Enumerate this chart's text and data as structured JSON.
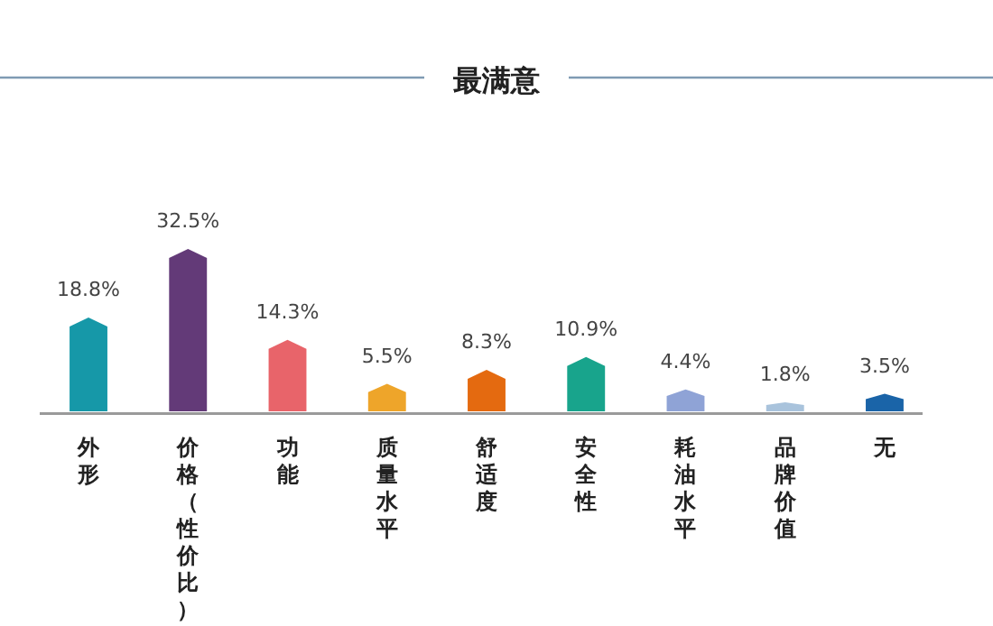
{
  "chart_data": {
    "type": "bar",
    "title": "最满意",
    "categories": [
      "外形",
      "价格（性价比）",
      "功能",
      "质量水平",
      "舒适度",
      "安全性",
      "耗油水平",
      "品牌价值",
      "无"
    ],
    "values": [
      18.8,
      32.5,
      14.3,
      5.5,
      8.3,
      10.9,
      4.4,
      1.8,
      3.5
    ],
    "value_labels": [
      "18.8%",
      "32.5%",
      "14.3%",
      "5.5%",
      "8.3%",
      "10.9%",
      "4.4%",
      "1.8%",
      "3.5%"
    ],
    "colors": [
      "#1698a8",
      "#633a78",
      "#e8646a",
      "#eea52a",
      "#e46a10",
      "#18a48c",
      "#8fa3d6",
      "#a9c3dc",
      "#1a64a8"
    ]
  }
}
